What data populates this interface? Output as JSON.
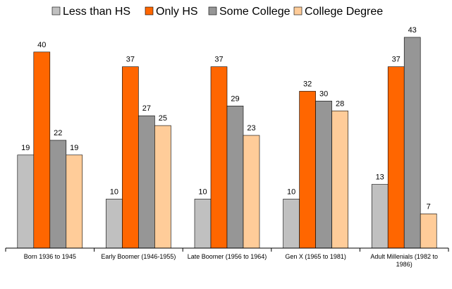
{
  "chart_data": {
    "type": "bar",
    "title": "",
    "xlabel": "",
    "ylabel": "",
    "ylim": [
      0,
      45
    ],
    "grid": false,
    "legend_position": "top",
    "categories": [
      "Born 1936 to 1945",
      "Early Boomer (1946-1955)",
      "Late Boomer (1956 to 1964)",
      "Gen X (1965 to 1981)",
      "Adult Millenials (1982 to 1986)"
    ],
    "series": [
      {
        "name": "Less than HS",
        "color": "#c0c0c0",
        "values": [
          19,
          10,
          10,
          10,
          13
        ]
      },
      {
        "name": "Only HS",
        "color": "#ff6600",
        "values": [
          40,
          37,
          37,
          32,
          37
        ]
      },
      {
        "name": "Some College",
        "color": "#969696",
        "values": [
          22,
          27,
          29,
          30,
          43
        ]
      },
      {
        "name": "College Degree",
        "color": "#ffcc99",
        "values": [
          19,
          25,
          23,
          28,
          7
        ]
      }
    ]
  }
}
